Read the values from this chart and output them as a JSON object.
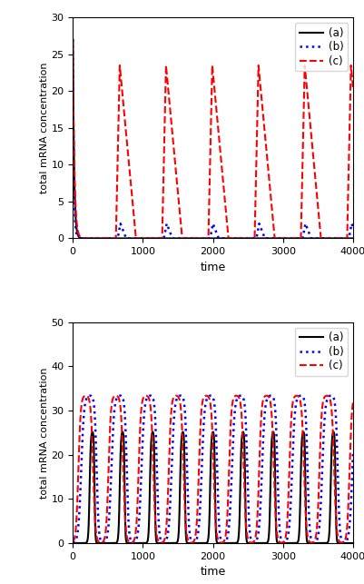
{
  "top_panel": {
    "ylim": [
      0,
      30
    ],
    "yticks": [
      0,
      5,
      10,
      15,
      20,
      25,
      30
    ],
    "xlim": [
      0,
      4000
    ],
    "xticks": [
      0,
      1000,
      2000,
      3000,
      4000
    ],
    "ylabel": "total mRNA concentration",
    "xlabel": "time",
    "legend_labels": [
      "(a)",
      "(b)",
      "(c)"
    ],
    "line_a_color": "#000000",
    "line_b_color": "#0000ff",
    "line_c_color": "#ff0000",
    "period_c": 660,
    "peak_c": 23.5,
    "period_b": 660,
    "peak_b": 2.0,
    "init_peak": 27.0
  },
  "bottom_panel": {
    "ylim": [
      0,
      50
    ],
    "yticks": [
      0,
      10,
      20,
      30,
      40,
      50
    ],
    "xlim": [
      0,
      4000
    ],
    "xticks": [
      0,
      1000,
      2000,
      3000,
      4000
    ],
    "ylabel": "total mRNA concentration",
    "xlabel": "time",
    "legend_labels": [
      "(a)",
      "(b)",
      "(c)"
    ],
    "line_a_color": "#000000",
    "line_b_color": "#0000ff",
    "line_c_color": "#ff0000",
    "period": 430,
    "peak_a": 25.5,
    "peak_b": 33.5,
    "peak_c": 33.5
  }
}
